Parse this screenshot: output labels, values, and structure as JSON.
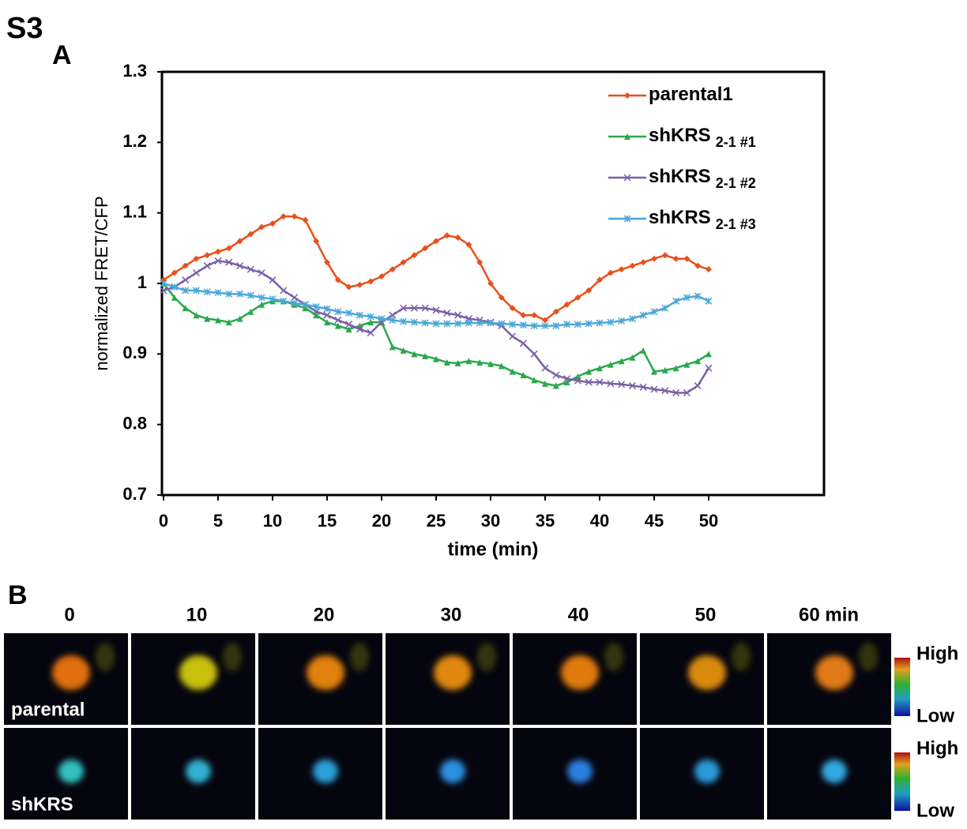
{
  "figure_label": "S3",
  "panel_a_label": "A",
  "chart_data": {
    "type": "line",
    "xlabel": "time (min)",
    "ylabel": "normalized FRET/CFP",
    "x": [
      0,
      1,
      2,
      3,
      4,
      5,
      6,
      7,
      8,
      9,
      10,
      11,
      12,
      13,
      14,
      15,
      16,
      17,
      18,
      19,
      20,
      21,
      22,
      23,
      24,
      25,
      26,
      27,
      28,
      29,
      30,
      31,
      32,
      33,
      34,
      35,
      36,
      37,
      38,
      39,
      40,
      41,
      42,
      43,
      44,
      45,
      46,
      47,
      48,
      49,
      50
    ],
    "xlim": [
      0,
      60
    ],
    "xticks": [
      0,
      5,
      10,
      15,
      20,
      25,
      30,
      35,
      40,
      45,
      50
    ],
    "ylim": [
      0.7,
      1.3
    ],
    "yticks": [
      0.7,
      0.8,
      0.9,
      1,
      1.1,
      1.2,
      1.3
    ],
    "legend": "upper right",
    "series": [
      {
        "name": "parental1",
        "color": "#e8501c",
        "marker": "diamond",
        "values": [
          1.005,
          1.015,
          1.025,
          1.035,
          1.04,
          1.045,
          1.05,
          1.06,
          1.07,
          1.08,
          1.085,
          1.095,
          1.095,
          1.09,
          1.06,
          1.03,
          1.005,
          0.995,
          0.998,
          1.003,
          1.01,
          1.02,
          1.03,
          1.04,
          1.05,
          1.06,
          1.068,
          1.065,
          1.055,
          1.03,
          1.0,
          0.98,
          0.965,
          0.955,
          0.955,
          0.948,
          0.96,
          0.97,
          0.98,
          0.99,
          1.005,
          1.015,
          1.02,
          1.025,
          1.03,
          1.035,
          1.04,
          1.035,
          1.035,
          1.025,
          1.02
        ]
      },
      {
        "name": "shKRS",
        "subscript": "2-1 #1",
        "color": "#2aa84a",
        "marker": "triangle",
        "values": [
          1.0,
          0.98,
          0.965,
          0.955,
          0.95,
          0.948,
          0.945,
          0.95,
          0.96,
          0.97,
          0.975,
          0.975,
          0.97,
          0.965,
          0.955,
          0.945,
          0.94,
          0.935,
          0.94,
          0.945,
          0.945,
          0.91,
          0.905,
          0.9,
          0.897,
          0.893,
          0.888,
          0.887,
          0.89,
          0.888,
          0.886,
          0.883,
          0.875,
          0.87,
          0.863,
          0.858,
          0.855,
          0.86,
          0.868,
          0.875,
          0.88,
          0.885,
          0.89,
          0.895,
          0.905,
          0.875,
          0.877,
          0.88,
          0.885,
          0.89,
          0.9
        ]
      },
      {
        "name": "shKRS",
        "subscript": "2-1 #2",
        "color": "#7b5ea7",
        "marker": "cross",
        "values": [
          0.99,
          0.995,
          1.005,
          1.015,
          1.025,
          1.032,
          1.03,
          1.025,
          1.02,
          1.015,
          1.005,
          0.99,
          0.98,
          0.97,
          0.96,
          0.955,
          0.948,
          0.942,
          0.935,
          0.93,
          0.945,
          0.955,
          0.965,
          0.965,
          0.965,
          0.962,
          0.958,
          0.955,
          0.95,
          0.948,
          0.945,
          0.94,
          0.925,
          0.915,
          0.9,
          0.88,
          0.87,
          0.865,
          0.862,
          0.86,
          0.86,
          0.858,
          0.857,
          0.855,
          0.853,
          0.85,
          0.848,
          0.845,
          0.845,
          0.855,
          0.88
        ]
      },
      {
        "name": "shKRS",
        "subscript": "2-1 #3",
        "color": "#4aa8d8",
        "marker": "star",
        "values": [
          1.0,
          0.995,
          0.99,
          0.99,
          0.988,
          0.987,
          0.985,
          0.985,
          0.983,
          0.98,
          0.978,
          0.975,
          0.972,
          0.97,
          0.967,
          0.964,
          0.96,
          0.958,
          0.955,
          0.953,
          0.95,
          0.948,
          0.946,
          0.945,
          0.944,
          0.943,
          0.943,
          0.943,
          0.944,
          0.944,
          0.944,
          0.943,
          0.942,
          0.941,
          0.94,
          0.94,
          0.94,
          0.942,
          0.942,
          0.943,
          0.944,
          0.945,
          0.947,
          0.95,
          0.955,
          0.96,
          0.965,
          0.975,
          0.98,
          0.982,
          0.975
        ]
      }
    ]
  },
  "panel_b": {
    "label": "B",
    "times": [
      "0",
      "10",
      "20",
      "30",
      "40",
      "50",
      "60 min"
    ],
    "rows": [
      "parental",
      "shKRS"
    ],
    "scale_high": "High",
    "scale_low": "Low"
  }
}
